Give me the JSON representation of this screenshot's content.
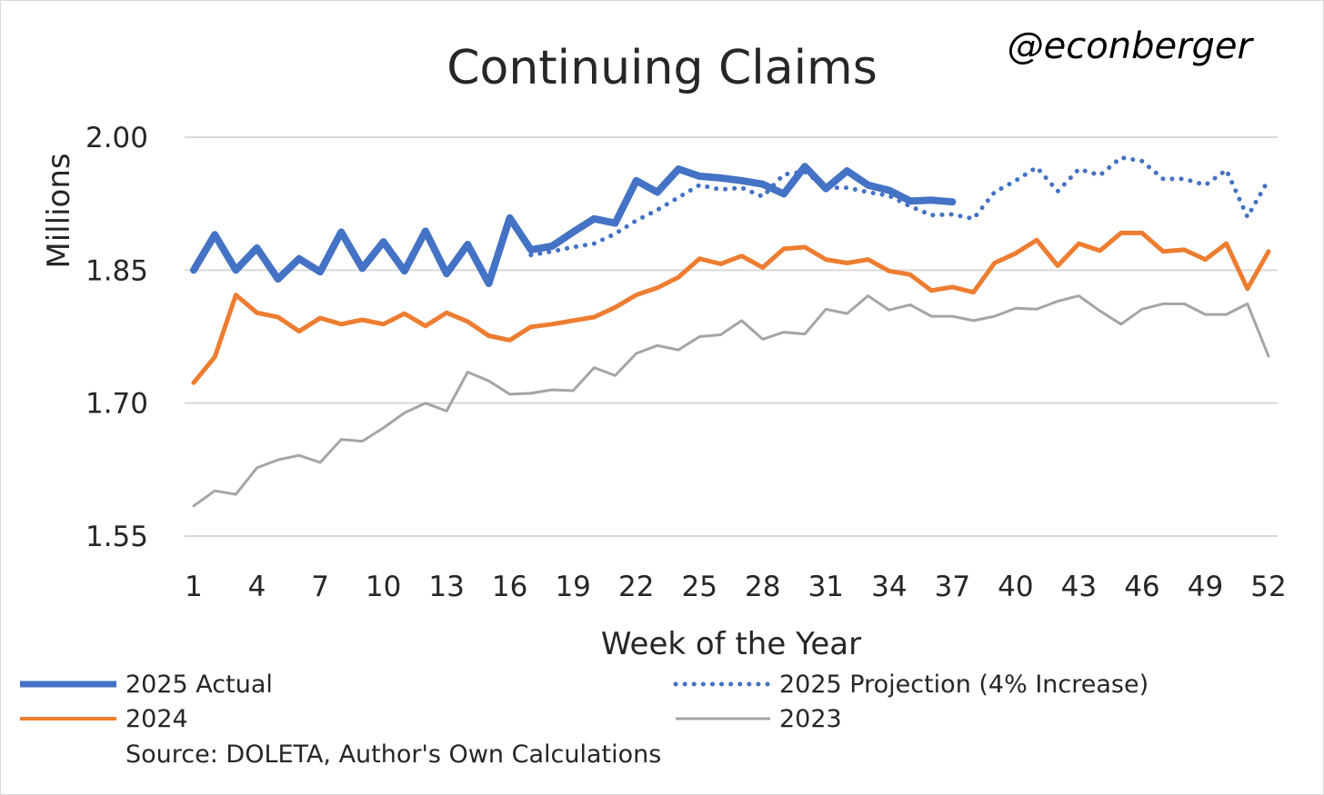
{
  "colors": {
    "actual_2025": "#4472C4",
    "projection_2025": "#4472C4",
    "y2024": "#ED7D31",
    "y2023": "#A5A5A5",
    "grid": "#D9D9D9"
  },
  "chart_data": {
    "type": "line",
    "title": "Continuing Claims",
    "handle": "@econberger",
    "xlabel": "Week of the Year",
    "ylabel": "Millions",
    "source": "Source: DOLETA, Author's Own Calculations",
    "xlim": [
      1,
      52
    ],
    "ylim": [
      1.55,
      2.0
    ],
    "x_ticks": [
      "1",
      "4",
      "7",
      "10",
      "13",
      "16",
      "19",
      "22",
      "25",
      "28",
      "31",
      "34",
      "37",
      "40",
      "43",
      "46",
      "49",
      "52"
    ],
    "y_ticks": [
      "1.55",
      "1.70",
      "1.85",
      "2.00"
    ],
    "grid": true,
    "legend_position": "bottom",
    "series": [
      {
        "name": "2025 Actual",
        "style": "solid-thick",
        "x": [
          1,
          2,
          3,
          4,
          5,
          6,
          7,
          8,
          9,
          10,
          11,
          12,
          13,
          14,
          15,
          16,
          17,
          18,
          19,
          20,
          21,
          22,
          23,
          24,
          25,
          26,
          27,
          28,
          29,
          30,
          31,
          32,
          33,
          34,
          35,
          36,
          37
        ],
        "values": [
          1.85,
          1.89,
          1.85,
          1.875,
          1.84,
          1.863,
          1.848,
          1.893,
          1.852,
          1.882,
          1.849,
          1.894,
          1.846,
          1.879,
          1.835,
          1.909,
          1.873,
          1.877,
          1.893,
          1.908,
          1.903,
          1.951,
          1.938,
          1.964,
          1.956,
          1.954,
          1.951,
          1.947,
          1.936,
          1.967,
          1.942,
          1.962,
          1.946,
          1.94,
          1.928,
          1.929,
          1.927
        ]
      },
      {
        "name": "2025 Projection (4% Increase)",
        "style": "dotted",
        "x": [
          17,
          18,
          19,
          20,
          21,
          22,
          23,
          24,
          25,
          26,
          27,
          28,
          29,
          30,
          31,
          32,
          33,
          34,
          35,
          36,
          37,
          38,
          39,
          40,
          41,
          42,
          43,
          44,
          45,
          46,
          47,
          48,
          49,
          50,
          51,
          52
        ],
        "values": [
          1.867,
          1.871,
          1.876,
          1.88,
          1.891,
          1.906,
          1.918,
          1.932,
          1.946,
          1.941,
          1.943,
          1.933,
          1.958,
          1.961,
          1.943,
          1.943,
          1.938,
          1.934,
          1.922,
          1.912,
          1.913,
          1.908,
          1.938,
          1.951,
          1.966,
          1.939,
          1.964,
          1.957,
          1.977,
          1.973,
          1.953,
          1.953,
          1.946,
          1.963,
          1.91,
          1.952
        ]
      },
      {
        "name": "2024",
        "style": "solid",
        "x": [
          1,
          2,
          3,
          4,
          5,
          6,
          7,
          8,
          9,
          10,
          11,
          12,
          13,
          14,
          15,
          16,
          17,
          18,
          19,
          20,
          21,
          22,
          23,
          24,
          25,
          26,
          27,
          28,
          29,
          30,
          31,
          32,
          33,
          34,
          35,
          36,
          37,
          38,
          39,
          40,
          41,
          42,
          43,
          44,
          45,
          46,
          47,
          48,
          49,
          50,
          51,
          52
        ],
        "values": [
          1.723,
          1.752,
          1.822,
          1.802,
          1.797,
          1.781,
          1.796,
          1.789,
          1.794,
          1.789,
          1.801,
          1.787,
          1.802,
          1.792,
          1.776,
          1.771,
          1.786,
          1.789,
          1.793,
          1.797,
          1.808,
          1.822,
          1.83,
          1.842,
          1.863,
          1.857,
          1.866,
          1.853,
          1.874,
          1.876,
          1.862,
          1.858,
          1.862,
          1.849,
          1.845,
          1.827,
          1.831,
          1.825,
          1.858,
          1.869,
          1.884,
          1.855,
          1.88,
          1.872,
          1.892,
          1.892,
          1.871,
          1.873,
          1.862,
          1.88,
          1.829,
          1.871
        ]
      },
      {
        "name": "2023",
        "style": "solid-thin",
        "x": [
          1,
          2,
          3,
          4,
          5,
          6,
          7,
          8,
          9,
          10,
          11,
          12,
          13,
          14,
          15,
          16,
          17,
          18,
          19,
          20,
          21,
          22,
          23,
          24,
          25,
          26,
          27,
          28,
          29,
          30,
          31,
          32,
          33,
          34,
          35,
          36,
          37,
          38,
          39,
          40,
          41,
          42,
          43,
          44,
          45,
          46,
          47,
          48,
          49,
          50,
          51,
          52
        ],
        "values": [
          1.584,
          1.601,
          1.597,
          1.627,
          1.636,
          1.641,
          1.633,
          1.659,
          1.657,
          1.672,
          1.689,
          1.7,
          1.691,
          1.735,
          1.725,
          1.71,
          1.711,
          1.715,
          1.714,
          1.74,
          1.731,
          1.756,
          1.765,
          1.76,
          1.775,
          1.777,
          1.793,
          1.772,
          1.78,
          1.778,
          1.806,
          1.801,
          1.821,
          1.805,
          1.811,
          1.798,
          1.798,
          1.793,
          1.798,
          1.807,
          1.806,
          1.815,
          1.821,
          1.804,
          1.789,
          1.806,
          1.812,
          1.812,
          1.8,
          1.8,
          1.812,
          1.753
        ]
      }
    ]
  }
}
